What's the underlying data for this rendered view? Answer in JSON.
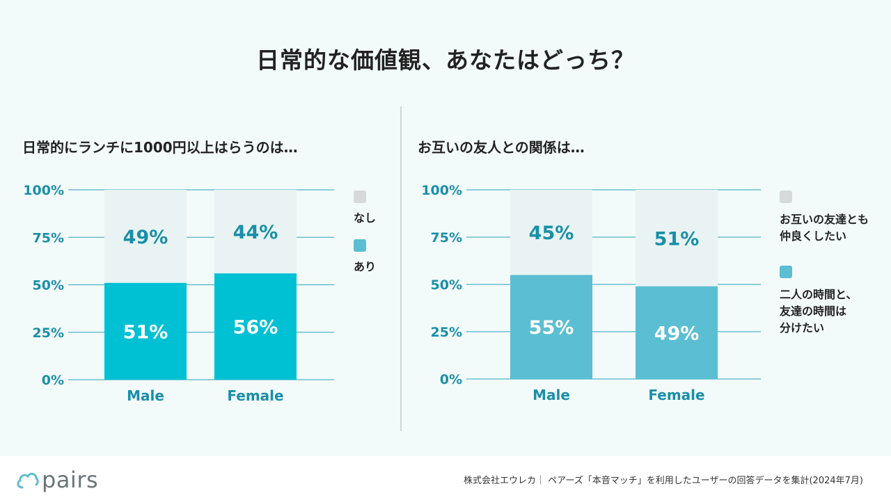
{
  "title": "日常的な価値観、あなたはどっち？",
  "colors": {
    "background": "#f3fafa",
    "bar_top": "#e9f3f3",
    "left_bottom": "#00c1d4",
    "right_bottom": "#5bbed2",
    "label_teal": "#1a8fa8",
    "gridline": "#4fb3c6"
  },
  "left_panel": {
    "title": "日常的にランチに1000円以上はらうのは…",
    "legend": [
      {
        "label": "なし",
        "color": "#d5d9d9"
      },
      {
        "label": "あり",
        "color": "#5bbed2"
      }
    ]
  },
  "right_panel": {
    "title": "お互いの友人との関係は…",
    "legend": [
      {
        "label": "お互いの友達とも\n仲良くしたい",
        "color": "#d5d9d9"
      },
      {
        "label": "二人の時間と、\n友達の時間は\n分けたい",
        "color": "#5bbed2"
      }
    ]
  },
  "chart_data": [
    {
      "type": "bar",
      "stacked": true,
      "title": "日常的にランチに1000円以上はらうのは…",
      "categories": [
        "Male",
        "Female"
      ],
      "yticks": [
        "0%",
        "25%",
        "50%",
        "75%",
        "100%"
      ],
      "ylim": [
        0,
        100
      ],
      "series": [
        {
          "name": "あり",
          "values": [
            51,
            56
          ],
          "labels": [
            "51%",
            "56%"
          ]
        },
        {
          "name": "なし",
          "values": [
            49,
            44
          ],
          "labels": [
            "49%",
            "44%"
          ]
        }
      ]
    },
    {
      "type": "bar",
      "stacked": true,
      "title": "お互いの友人との関係は…",
      "categories": [
        "Male",
        "Female"
      ],
      "yticks": [
        "0%",
        "25%",
        "50%",
        "75%",
        "100%"
      ],
      "ylim": [
        0,
        100
      ],
      "series": [
        {
          "name": "二人の時間と、友達の時間は分けたい",
          "values": [
            55,
            49
          ],
          "labels": [
            "55%",
            "49%"
          ]
        },
        {
          "name": "お互いの友達とも仲良くしたい",
          "values": [
            45,
            51
          ],
          "labels": [
            "45%",
            "51%"
          ]
        }
      ]
    }
  ],
  "footer": {
    "logo_text": "pairs",
    "source": "株式会社エウレカ｜ ペアーズ「本音マッチ」を利用したユーザーの回答データを集計(2024年7月)"
  }
}
